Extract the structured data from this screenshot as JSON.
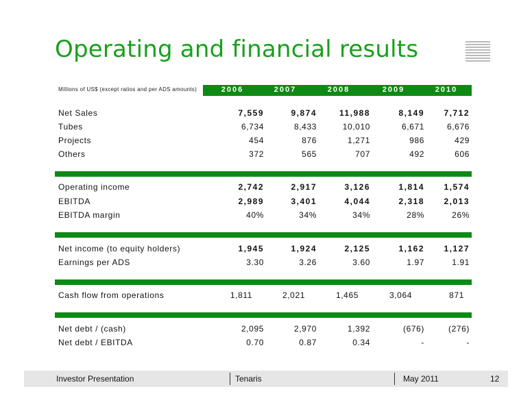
{
  "title": "Operating and financial results",
  "table": {
    "units_note": "Millions of US$ (except ratios and per ADS amounts)",
    "years": [
      "2006",
      "2007",
      "2008",
      "2009",
      "2010"
    ],
    "groups": [
      {
        "rows": [
          {
            "label": "Net Sales",
            "bold": true,
            "values": [
              "7,559",
              "9,874",
              "11,988",
              "8,149",
              "7,712"
            ]
          },
          {
            "label": "Tubes",
            "bold": false,
            "values": [
              "6,734",
              "8,433",
              "10,010",
              "6,671",
              "6,676"
            ]
          },
          {
            "label": "Projects",
            "bold": false,
            "values": [
              "454",
              "876",
              "1,271",
              "986",
              "429"
            ]
          },
          {
            "label": "Others",
            "bold": false,
            "values": [
              "372",
              "565",
              "707",
              "492",
              "606"
            ]
          }
        ]
      },
      {
        "rows": [
          {
            "label": "Operating income",
            "bold": true,
            "values": [
              "2,742",
              "2,917",
              "3,126",
              "1,814",
              "1,574"
            ]
          },
          {
            "label": "EBITDA",
            "bold": true,
            "values": [
              "2,989",
              "3,401",
              "4,044",
              "2,318",
              "2,013"
            ]
          },
          {
            "label": "EBITDA margin",
            "bold": false,
            "values": [
              "40%",
              "34%",
              "34%",
              "28%",
              "26%"
            ]
          }
        ]
      },
      {
        "rows": [
          {
            "label": "Net income (to equity holders)",
            "bold": true,
            "values": [
              "1,945",
              "1,924",
              "2,125",
              "1,162",
              "1,127"
            ]
          },
          {
            "label": "Earnings per ADS",
            "bold": false,
            "values": [
              "3.30",
              "3.26",
              "3.60",
              "1.97",
              "1.91"
            ]
          }
        ]
      },
      {
        "rows": [
          {
            "label": "Cash flow from operations",
            "bold": false,
            "values": [
              "1,811",
              "2,021",
              "1,465",
              "3,064",
              "871"
            ]
          }
        ]
      },
      {
        "rows": [
          {
            "label": "Net debt / (cash)",
            "bold": false,
            "values": [
              "2,095",
              "2,970",
              "1,392",
              "(676)",
              "(276)"
            ]
          },
          {
            "label": "Net debt / EBITDA",
            "bold": false,
            "values": [
              "0.70",
              "0.87",
              "0.34",
              "-",
              "-"
            ]
          }
        ]
      }
    ]
  },
  "footer": {
    "left": "Investor  Presentation",
    "center": "Tenaris",
    "date": "May 2011",
    "page": "12"
  },
  "colors": {
    "title_green": "#18a01c",
    "bar_green": "#0e8a14",
    "footer_gray": "#e6e6e6"
  }
}
